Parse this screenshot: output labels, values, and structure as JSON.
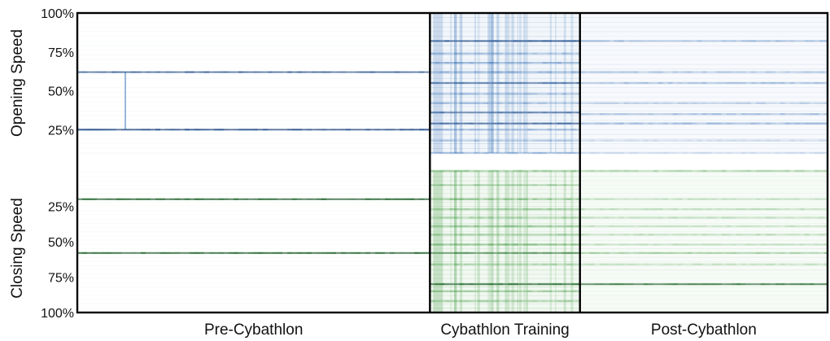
{
  "chart_data": {
    "type": "heatmap",
    "title": "",
    "ylabel_top": "Opening Speed",
    "ylabel_bottom": "Closing Speed",
    "opening_ticks": [
      "100%",
      "75%",
      "50%",
      "25%"
    ],
    "opening_tick_values": [
      100,
      75,
      50,
      25
    ],
    "closing_ticks": [
      "25%",
      "50%",
      "75%",
      "100%"
    ],
    "closing_tick_values": [
      25,
      50,
      75,
      100
    ],
    "phases": [
      {
        "label": "Pre-Cybathlon",
        "share": 0.47
      },
      {
        "label": "Cybathlon Training",
        "share": 0.2
      },
      {
        "label": "Post-Cybathlon",
        "share": 0.33
      }
    ],
    "colors": {
      "opening": "#1f5fae",
      "closing": "#2a8f2a",
      "dark": "#0a0f2a",
      "frame": "#000000"
    },
    "opening_bands": [
      {
        "phase": 0,
        "levels": [
          62,
          25
        ],
        "intensity": [
          0.75,
          0.85
        ]
      },
      {
        "phase": 1,
        "levels": [
          82,
          74,
          68,
          62,
          55,
          48,
          42,
          36,
          29,
          25,
          18,
          10
        ],
        "intensity": [
          0.8,
          0.45,
          0.6,
          0.55,
          0.7,
          0.5,
          0.45,
          0.7,
          0.75,
          0.45,
          0.4,
          0.5
        ]
      },
      {
        "phase": 2,
        "levels": [
          82,
          62,
          55,
          42,
          35,
          29,
          18,
          10
        ],
        "intensity": [
          0.45,
          0.4,
          0.45,
          0.35,
          0.45,
          0.5,
          0.25,
          0.25
        ]
      }
    ],
    "closing_bands": [
      {
        "phase": 0,
        "levels": [
          20,
          58
        ],
        "intensity": [
          0.9,
          0.9
        ]
      },
      {
        "phase": 1,
        "levels": [
          0,
          10,
          20,
          27,
          33,
          39,
          45,
          52,
          58,
          66,
          80,
          85,
          92
        ],
        "intensity": [
          0.55,
          0.4,
          0.55,
          0.5,
          0.45,
          0.55,
          0.45,
          0.6,
          0.7,
          0.45,
          0.85,
          0.5,
          0.45
        ]
      },
      {
        "phase": 2,
        "levels": [
          0,
          20,
          27,
          33,
          39,
          45,
          52,
          58,
          66,
          80
        ],
        "intensity": [
          0.45,
          0.3,
          0.35,
          0.35,
          0.3,
          0.35,
          0.3,
          0.45,
          0.3,
          0.8
        ]
      }
    ]
  }
}
